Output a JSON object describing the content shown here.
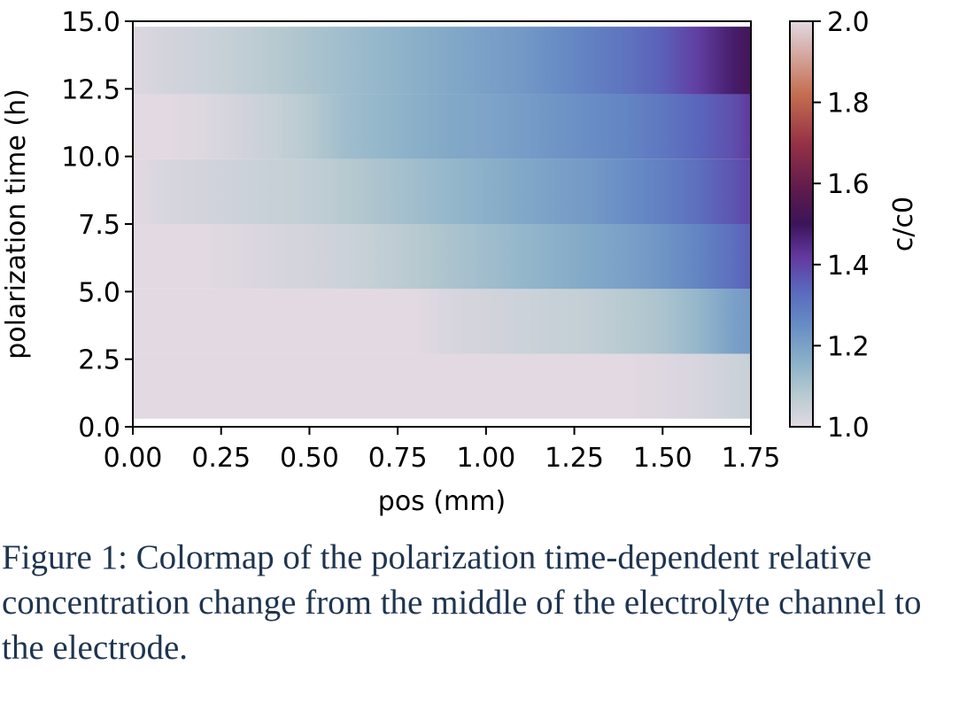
{
  "chart_data": {
    "type": "heatmap",
    "xlabel": "pos (mm)",
    "ylabel": "polarization time (h)",
    "colorbar_label": "c/c0",
    "xlim": [
      0,
      1.75
    ],
    "ylim": [
      0,
      15.0
    ],
    "x_ticks": [
      "0.00",
      "0.25",
      "0.50",
      "0.75",
      "1.00",
      "1.25",
      "1.50",
      "1.75"
    ],
    "y_ticks": [
      "0.0",
      "2.5",
      "5.0",
      "7.5",
      "10.0",
      "12.5",
      "15.0"
    ],
    "colorbar_range": [
      1.0,
      2.0
    ],
    "colorbar_ticks": [
      "1.0",
      "1.2",
      "1.4",
      "1.6",
      "1.8",
      "2.0"
    ],
    "colormap": "twilight",
    "x": [
      0.0,
      0.1,
      0.2,
      0.3,
      0.4,
      0.5,
      0.6,
      0.7,
      0.8,
      0.9,
      1.0,
      1.1,
      1.2,
      1.3,
      1.4,
      1.5,
      1.6,
      1.7,
      1.75
    ],
    "rows": [
      {
        "t_start": 0.3,
        "t_end": 2.7,
        "values": [
          1.0,
          1.0,
          1.0,
          1.0,
          1.0,
          1.0,
          1.0,
          1.0,
          1.0,
          1.0,
          1.0,
          1.0,
          1.0,
          1.0,
          1.0,
          1.01,
          1.02,
          1.04,
          1.05
        ]
      },
      {
        "t_start": 2.7,
        "t_end": 5.1,
        "values": [
          1.0,
          1.0,
          1.0,
          1.0,
          1.0,
          1.0,
          1.0,
          1.0,
          1.0,
          1.02,
          1.03,
          1.04,
          1.05,
          1.06,
          1.08,
          1.1,
          1.14,
          1.2,
          1.22
        ]
      },
      {
        "t_start": 5.1,
        "t_end": 7.5,
        "values": [
          1.0,
          1.0,
          1.0,
          1.01,
          1.02,
          1.03,
          1.04,
          1.06,
          1.08,
          1.1,
          1.12,
          1.14,
          1.16,
          1.18,
          1.2,
          1.23,
          1.27,
          1.32,
          1.35
        ]
      },
      {
        "t_start": 7.5,
        "t_end": 9.9,
        "values": [
          1.0,
          1.02,
          1.03,
          1.04,
          1.05,
          1.06,
          1.08,
          1.1,
          1.12,
          1.14,
          1.16,
          1.18,
          1.2,
          1.22,
          1.25,
          1.28,
          1.32,
          1.37,
          1.4
        ]
      },
      {
        "t_start": 9.9,
        "t_end": 12.3,
        "values": [
          1.0,
          1.0,
          1.01,
          1.03,
          1.05,
          1.08,
          1.12,
          1.14,
          1.16,
          1.18,
          1.19,
          1.21,
          1.23,
          1.25,
          1.27,
          1.3,
          1.34,
          1.38,
          1.42
        ]
      },
      {
        "t_start": 12.3,
        "t_end": 14.8,
        "values": [
          1.01,
          1.03,
          1.04,
          1.06,
          1.08,
          1.1,
          1.12,
          1.14,
          1.16,
          1.18,
          1.2,
          1.22,
          1.25,
          1.28,
          1.31,
          1.35,
          1.41,
          1.48,
          1.52
        ]
      }
    ]
  },
  "caption": "Figure 1: Colormap of the polarization time-dependent relative concentration change from the middle of the electrolyte channel to the electrode."
}
